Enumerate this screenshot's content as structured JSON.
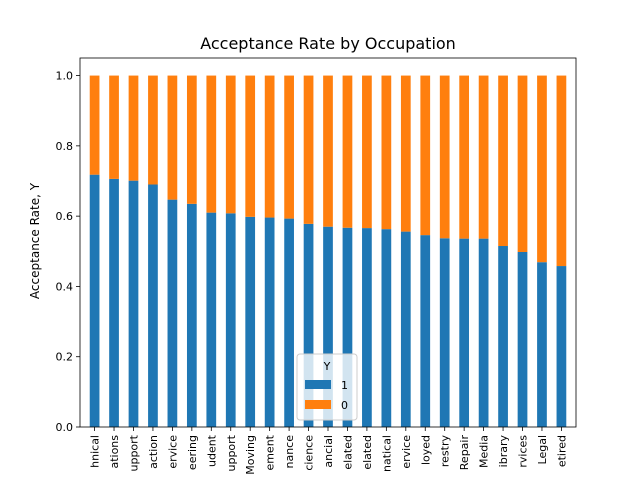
{
  "chart_data": {
    "type": "bar",
    "stacked": true,
    "title": "Acceptance Rate by Occupation",
    "xlabel": "",
    "ylabel": "Acceptance Rate, Y",
    "ylim": [
      0,
      1.05
    ],
    "yticks": [
      "0.0",
      "0.2",
      "0.4",
      "0.6",
      "0.8",
      "1.0"
    ],
    "grid": false,
    "categories": [
      "hnical",
      "ations",
      "upport",
      "action",
      "ervice",
      "eering",
      "udent",
      "upport",
      "Moving",
      "ement",
      "nance",
      "cience",
      "ancial",
      "elated",
      "elated",
      "natical",
      "ervice",
      "loyed",
      "restry",
      "Repair",
      "Media",
      "ibrary",
      "rvices",
      "Legal",
      "etired"
    ],
    "series": [
      {
        "name": "1",
        "color": "#1f77b4",
        "values": [
          0.718,
          0.706,
          0.701,
          0.69,
          0.647,
          0.635,
          0.61,
          0.608,
          0.598,
          0.596,
          0.593,
          0.578,
          0.57,
          0.567,
          0.566,
          0.563,
          0.556,
          0.546,
          0.537,
          0.536,
          0.536,
          0.515,
          0.498,
          0.469,
          0.458
        ]
      },
      {
        "name": "0",
        "color": "#ff7f0e",
        "values": [
          0.282,
          0.294,
          0.299,
          0.31,
          0.353,
          0.365,
          0.39,
          0.392,
          0.402,
          0.404,
          0.407,
          0.422,
          0.43,
          0.433,
          0.434,
          0.437,
          0.444,
          0.454,
          0.463,
          0.464,
          0.464,
          0.485,
          0.502,
          0.531,
          0.542
        ]
      }
    ],
    "legend": {
      "title": "Y",
      "placement": "bottom-center"
    }
  }
}
